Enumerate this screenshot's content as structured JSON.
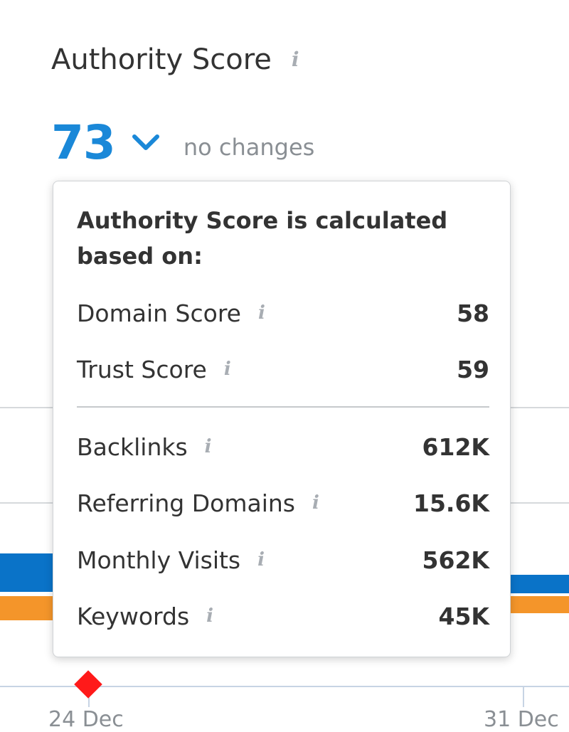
{
  "header": {
    "title": "Authority Score",
    "info_icon": "i"
  },
  "score": {
    "value": "73",
    "change_text": "no changes",
    "accent_color": "#1a88d8"
  },
  "tooltip": {
    "heading": "Authority Score is calculated based on:",
    "primary_metrics": [
      {
        "label": "Domain Score",
        "value": "58",
        "icon": "info-icon"
      },
      {
        "label": "Trust Score",
        "value": "59",
        "icon": "info-icon"
      }
    ],
    "secondary_metrics": [
      {
        "label": "Backlinks",
        "value": "612K",
        "icon": "info-icon"
      },
      {
        "label": "Referring Domains",
        "value": "15.6K",
        "icon": "info-icon"
      },
      {
        "label": "Monthly Visits",
        "value": "562K",
        "icon": "info-icon"
      },
      {
        "label": "Keywords",
        "value": "45K",
        "icon": "info-icon"
      }
    ]
  },
  "chart_background": {
    "x_tick_labels": [
      "24 Dec",
      "31 Dec"
    ],
    "series_colors": [
      "#0a73c8",
      "#f4952a"
    ],
    "marker_color": "#ff1a1a"
  }
}
